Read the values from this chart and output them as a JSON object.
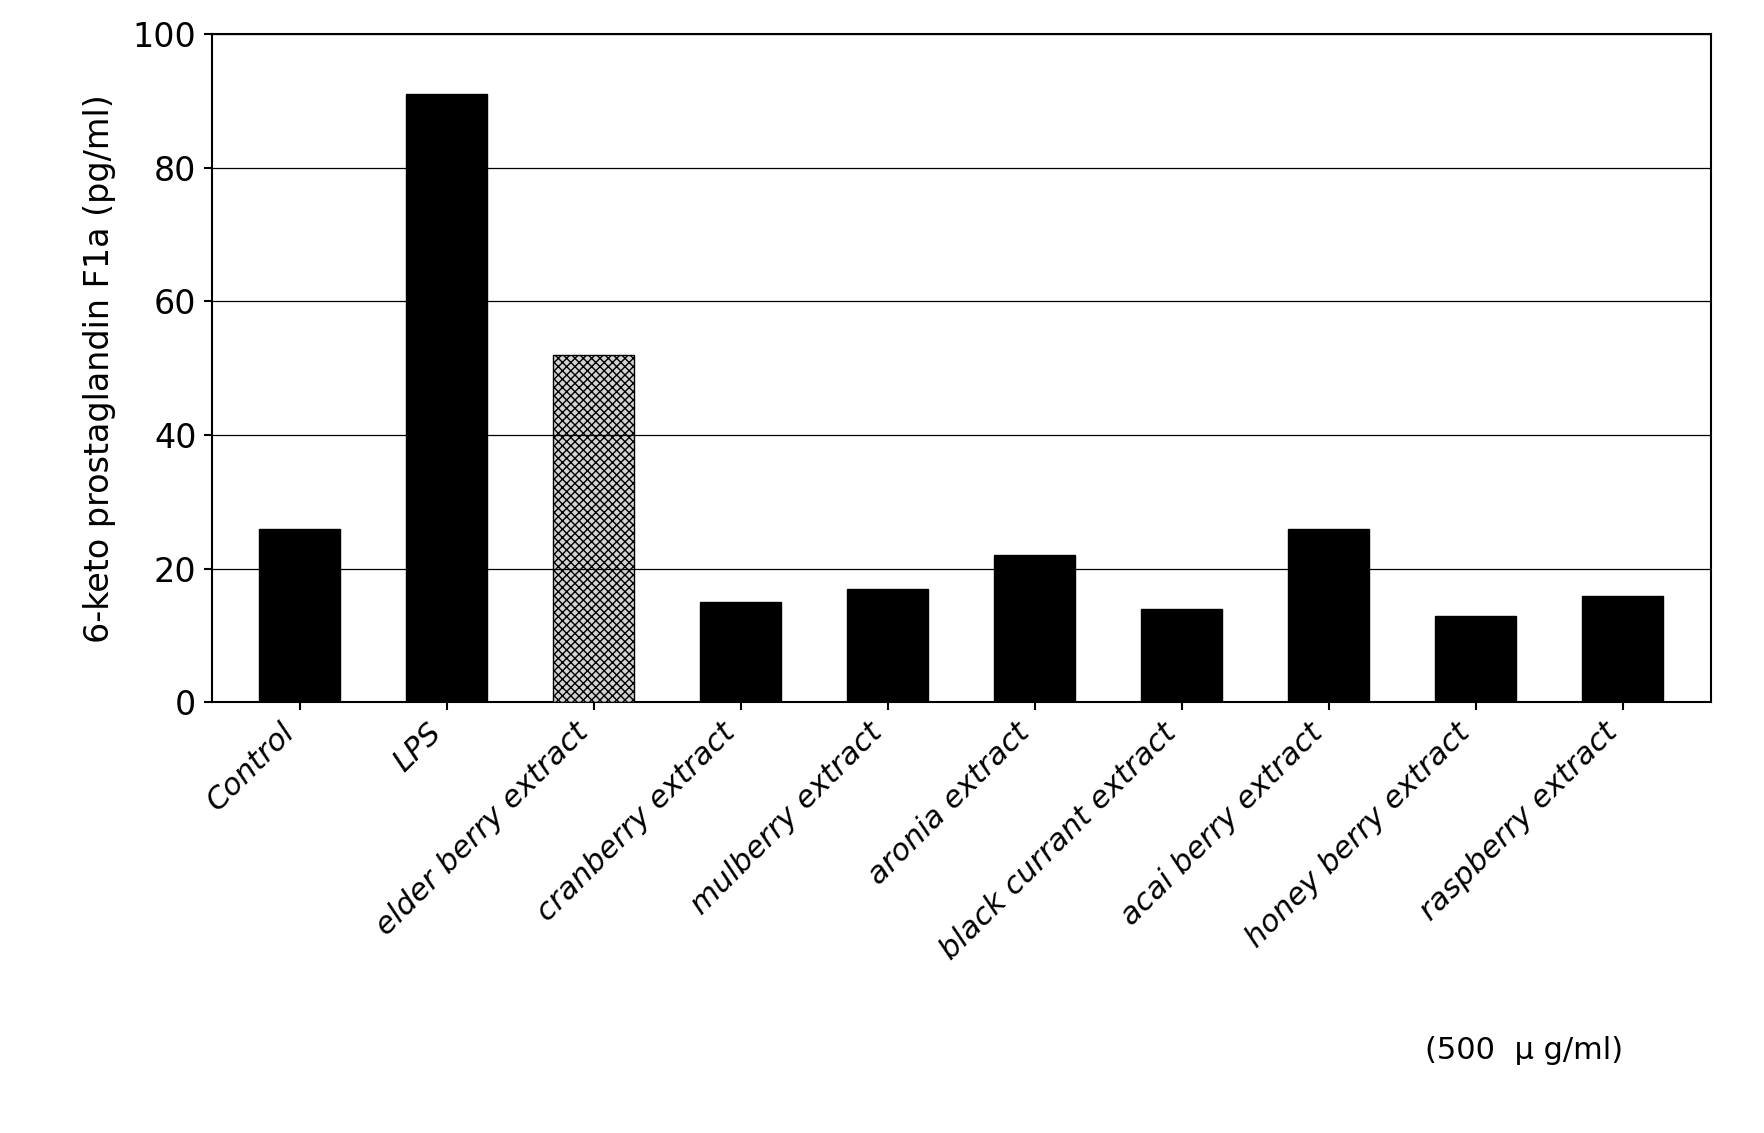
{
  "categories": [
    "Control",
    "LPS",
    "elder berry extract",
    "cranberry extract",
    "mulberry extract",
    "aronia extract",
    "black currant extract",
    "acai berry extract",
    "honey berry extract",
    "raspberry extract"
  ],
  "values": [
    26,
    91,
    52,
    15,
    17,
    22,
    14,
    26,
    13,
    16
  ],
  "bar_colors": [
    "black",
    "black",
    "gray_hatched",
    "black",
    "black",
    "black",
    "black",
    "black",
    "black",
    "black"
  ],
  "ylabel": "6-keto prostaglandin F1a (pg/ml)",
  "ylim": [
    0,
    100
  ],
  "yticks": [
    0,
    20,
    40,
    60,
    80,
    100
  ],
  "annotation": "(500  μ g/ml)",
  "background_color": "#ffffff"
}
